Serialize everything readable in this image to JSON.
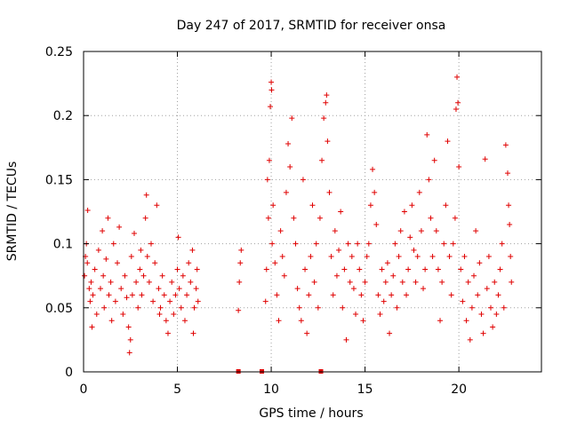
{
  "chart_data": {
    "type": "scatter",
    "title": "Day 247 of 2017, SRMTID for receiver onsa",
    "xlabel": "GPS time / hours",
    "ylabel": "SRMTID / TECUs",
    "xlim": [
      0,
      24.4
    ],
    "ylim": [
      0,
      0.25
    ],
    "x_ticks": [
      0,
      5,
      10,
      15,
      20
    ],
    "x_tick_labels": [
      "0",
      "5",
      "10",
      "15",
      "20"
    ],
    "y_ticks": [
      0,
      0.05,
      0.1,
      0.15,
      0.2,
      0.25
    ],
    "y_tick_labels": [
      "0",
      "0.05",
      "0.1",
      "0.15",
      "0.2",
      "0.25"
    ],
    "grid": true,
    "marker": "+",
    "color": "#e00000",
    "series": [
      {
        "name": "SRMTID",
        "points": [
          [
            0.05,
            0.075
          ],
          [
            0.1,
            0.09
          ],
          [
            0.15,
            0.1
          ],
          [
            0.2,
            0.085
          ],
          [
            0.22,
            0.126
          ],
          [
            0.3,
            0.065
          ],
          [
            0.35,
            0.055
          ],
          [
            0.4,
            0.07
          ],
          [
            0.45,
            0.035
          ],
          [
            0.5,
            0.06
          ],
          [
            0.6,
            0.08
          ],
          [
            0.7,
            0.045
          ],
          [
            0.8,
            0.095
          ],
          [
            0.9,
            0.065
          ],
          [
            1.0,
            0.11
          ],
          [
            1.05,
            0.075
          ],
          [
            1.1,
            0.05
          ],
          [
            1.2,
            0.088
          ],
          [
            1.3,
            0.12
          ],
          [
            1.35,
            0.06
          ],
          [
            1.45,
            0.07
          ],
          [
            1.5,
            0.04
          ],
          [
            1.6,
            0.1
          ],
          [
            1.7,
            0.055
          ],
          [
            1.8,
            0.085
          ],
          [
            1.9,
            0.113
          ],
          [
            2.0,
            0.065
          ],
          [
            2.1,
            0.045
          ],
          [
            2.2,
            0.075
          ],
          [
            2.3,
            0.058
          ],
          [
            2.4,
            0.035
          ],
          [
            2.45,
            0.015
          ],
          [
            2.5,
            0.025
          ],
          [
            2.55,
            0.09
          ],
          [
            2.6,
            0.06
          ],
          [
            2.7,
            0.108
          ],
          [
            2.8,
            0.07
          ],
          [
            2.9,
            0.05
          ],
          [
            3.0,
            0.08
          ],
          [
            3.05,
            0.095
          ],
          [
            3.1,
            0.06
          ],
          [
            3.2,
            0.075
          ],
          [
            3.3,
            0.12
          ],
          [
            3.35,
            0.138
          ],
          [
            3.4,
            0.09
          ],
          [
            3.5,
            0.07
          ],
          [
            3.6,
            0.1
          ],
          [
            3.7,
            0.055
          ],
          [
            3.8,
            0.085
          ],
          [
            3.9,
            0.13
          ],
          [
            4.0,
            0.065
          ],
          [
            4.05,
            0.045
          ],
          [
            4.1,
            0.05
          ],
          [
            4.2,
            0.075
          ],
          [
            4.3,
            0.06
          ],
          [
            4.4,
            0.04
          ],
          [
            4.5,
            0.03
          ],
          [
            4.6,
            0.055
          ],
          [
            4.7,
            0.07
          ],
          [
            4.8,
            0.045
          ],
          [
            4.9,
            0.06
          ],
          [
            5.0,
            0.08
          ],
          [
            5.05,
            0.105
          ],
          [
            5.1,
            0.065
          ],
          [
            5.2,
            0.05
          ],
          [
            5.3,
            0.075
          ],
          [
            5.4,
            0.04
          ],
          [
            5.5,
            0.06
          ],
          [
            5.6,
            0.085
          ],
          [
            5.7,
            0.07
          ],
          [
            5.8,
            0.095
          ],
          [
            5.85,
            0.03
          ],
          [
            5.9,
            0.05
          ],
          [
            6.0,
            0.065
          ],
          [
            6.05,
            0.08
          ],
          [
            6.1,
            0.055
          ],
          [
            8.25,
            0.048
          ],
          [
            8.3,
            0.07
          ],
          [
            8.35,
            0.085
          ],
          [
            8.4,
            0.095
          ],
          [
            9.7,
            0.055
          ],
          [
            9.75,
            0.08
          ],
          [
            9.8,
            0.15
          ],
          [
            9.85,
            0.12
          ],
          [
            9.9,
            0.165
          ],
          [
            9.95,
            0.207
          ],
          [
            10.0,
            0.226
          ],
          [
            10.02,
            0.22
          ],
          [
            10.05,
            0.1
          ],
          [
            10.1,
            0.13
          ],
          [
            10.2,
            0.085
          ],
          [
            10.3,
            0.06
          ],
          [
            10.4,
            0.04
          ],
          [
            10.5,
            0.11
          ],
          [
            10.6,
            0.09
          ],
          [
            10.7,
            0.075
          ],
          [
            10.8,
            0.14
          ],
          [
            10.9,
            0.178
          ],
          [
            11.0,
            0.16
          ],
          [
            11.1,
            0.198
          ],
          [
            11.2,
            0.12
          ],
          [
            11.3,
            0.1
          ],
          [
            11.4,
            0.065
          ],
          [
            11.5,
            0.05
          ],
          [
            11.6,
            0.04
          ],
          [
            11.7,
            0.15
          ],
          [
            11.8,
            0.08
          ],
          [
            11.9,
            0.03
          ],
          [
            12.0,
            0.06
          ],
          [
            12.1,
            0.09
          ],
          [
            12.2,
            0.13
          ],
          [
            12.3,
            0.07
          ],
          [
            12.4,
            0.1
          ],
          [
            12.5,
            0.05
          ],
          [
            12.6,
            0.12
          ],
          [
            12.7,
            0.165
          ],
          [
            12.8,
            0.198
          ],
          [
            12.9,
            0.21
          ],
          [
            12.95,
            0.216
          ],
          [
            13.0,
            0.18
          ],
          [
            13.1,
            0.14
          ],
          [
            13.2,
            0.09
          ],
          [
            13.3,
            0.06
          ],
          [
            13.4,
            0.11
          ],
          [
            13.5,
            0.075
          ],
          [
            13.6,
            0.095
          ],
          [
            13.7,
            0.125
          ],
          [
            13.8,
            0.05
          ],
          [
            13.9,
            0.08
          ],
          [
            14.0,
            0.025
          ],
          [
            14.1,
            0.1
          ],
          [
            14.2,
            0.07
          ],
          [
            14.3,
            0.09
          ],
          [
            14.4,
            0.065
          ],
          [
            14.5,
            0.045
          ],
          [
            14.6,
            0.1
          ],
          [
            14.7,
            0.08
          ],
          [
            14.8,
            0.06
          ],
          [
            14.9,
            0.04
          ],
          [
            15.0,
            0.07
          ],
          [
            15.1,
            0.09
          ],
          [
            15.2,
            0.1
          ],
          [
            15.3,
            0.13
          ],
          [
            15.4,
            0.158
          ],
          [
            15.5,
            0.14
          ],
          [
            15.6,
            0.115
          ],
          [
            15.7,
            0.06
          ],
          [
            15.8,
            0.045
          ],
          [
            15.9,
            0.08
          ],
          [
            16.0,
            0.055
          ],
          [
            16.1,
            0.07
          ],
          [
            16.2,
            0.085
          ],
          [
            16.3,
            0.03
          ],
          [
            16.4,
            0.06
          ],
          [
            16.5,
            0.075
          ],
          [
            16.6,
            0.1
          ],
          [
            16.7,
            0.05
          ],
          [
            16.8,
            0.09
          ],
          [
            16.9,
            0.11
          ],
          [
            17.0,
            0.07
          ],
          [
            17.1,
            0.125
          ],
          [
            17.2,
            0.06
          ],
          [
            17.3,
            0.08
          ],
          [
            17.4,
            0.105
          ],
          [
            17.5,
            0.13
          ],
          [
            17.6,
            0.095
          ],
          [
            17.7,
            0.07
          ],
          [
            17.8,
            0.09
          ],
          [
            17.9,
            0.14
          ],
          [
            18.0,
            0.11
          ],
          [
            18.1,
            0.065
          ],
          [
            18.2,
            0.08
          ],
          [
            18.3,
            0.185
          ],
          [
            18.4,
            0.15
          ],
          [
            18.5,
            0.12
          ],
          [
            18.6,
            0.09
          ],
          [
            18.7,
            0.165
          ],
          [
            18.8,
            0.11
          ],
          [
            18.9,
            0.08
          ],
          [
            19.0,
            0.04
          ],
          [
            19.1,
            0.07
          ],
          [
            19.2,
            0.1
          ],
          [
            19.3,
            0.13
          ],
          [
            19.4,
            0.18
          ],
          [
            19.5,
            0.09
          ],
          [
            19.6,
            0.06
          ],
          [
            19.7,
            0.1
          ],
          [
            19.8,
            0.12
          ],
          [
            19.85,
            0.205
          ],
          [
            19.9,
            0.23
          ],
          [
            19.95,
            0.21
          ],
          [
            20.0,
            0.16
          ],
          [
            20.1,
            0.08
          ],
          [
            20.2,
            0.055
          ],
          [
            20.3,
            0.09
          ],
          [
            20.4,
            0.04
          ],
          [
            20.5,
            0.07
          ],
          [
            20.6,
            0.025
          ],
          [
            20.7,
            0.05
          ],
          [
            20.8,
            0.075
          ],
          [
            20.9,
            0.11
          ],
          [
            21.0,
            0.06
          ],
          [
            21.1,
            0.085
          ],
          [
            21.2,
            0.045
          ],
          [
            21.3,
            0.03
          ],
          [
            21.4,
            0.166
          ],
          [
            21.5,
            0.065
          ],
          [
            21.6,
            0.09
          ],
          [
            21.7,
            0.05
          ],
          [
            21.8,
            0.035
          ],
          [
            21.9,
            0.07
          ],
          [
            22.0,
            0.045
          ],
          [
            22.1,
            0.06
          ],
          [
            22.2,
            0.08
          ],
          [
            22.3,
            0.1
          ],
          [
            22.4,
            0.05
          ],
          [
            22.5,
            0.177
          ],
          [
            22.6,
            0.155
          ],
          [
            22.65,
            0.13
          ],
          [
            22.7,
            0.115
          ],
          [
            22.75,
            0.09
          ],
          [
            22.8,
            0.07
          ]
        ]
      }
    ],
    "gap_markers_x": [
      8.25,
      9.5,
      12.65
    ]
  }
}
